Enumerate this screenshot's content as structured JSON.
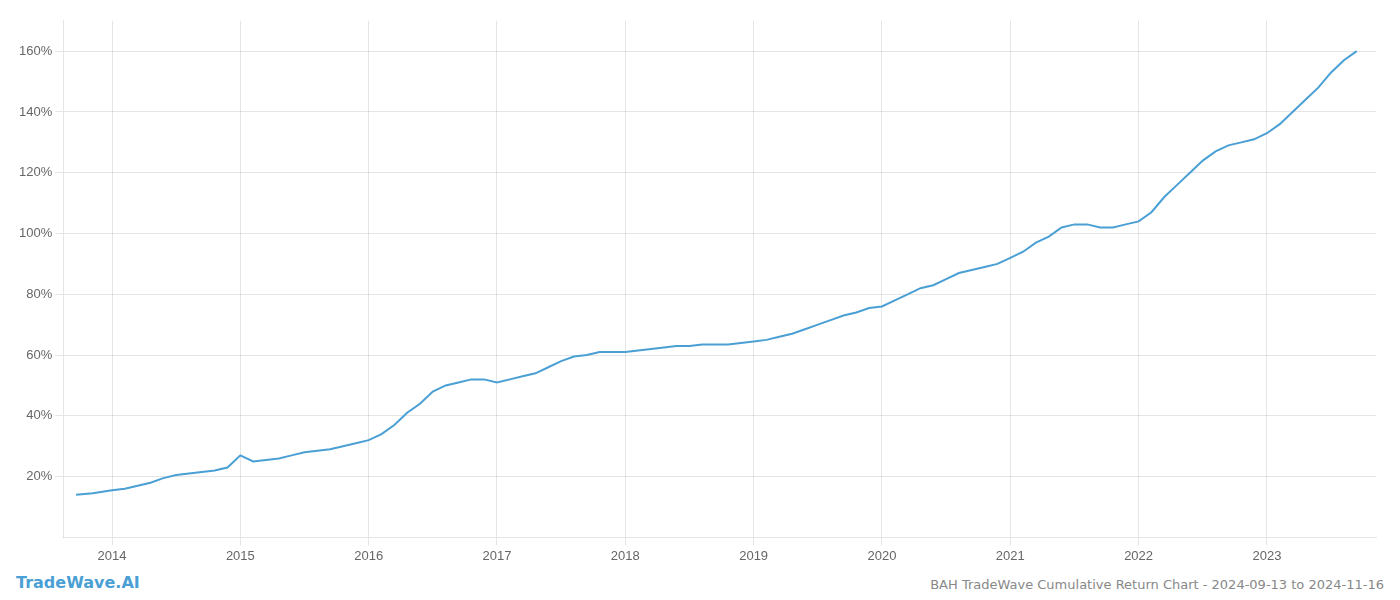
{
  "chart_data": {
    "type": "line",
    "title": "BAH TradeWave Cumulative Return Chart - 2024-09-13 to 2024-11-16",
    "annotations": [
      "TradeWave.AI"
    ],
    "color": "#4a9fd4",
    "grid": true,
    "x": [
      2013.72,
      2013.85,
      2014.0,
      2014.1,
      2014.2,
      2014.3,
      2014.4,
      2014.5,
      2014.6,
      2014.7,
      2014.8,
      2014.9,
      2015.0,
      2015.1,
      2015.2,
      2015.3,
      2015.4,
      2015.5,
      2015.6,
      2015.7,
      2015.8,
      2015.9,
      2016.0,
      2016.1,
      2016.2,
      2016.3,
      2016.4,
      2016.5,
      2016.6,
      2016.7,
      2016.8,
      2016.9,
      2017.0,
      2017.1,
      2017.2,
      2017.3,
      2017.4,
      2017.5,
      2017.6,
      2017.7,
      2017.8,
      2017.9,
      2018.0,
      2018.1,
      2018.2,
      2018.3,
      2018.4,
      2018.5,
      2018.6,
      2018.7,
      2018.8,
      2018.9,
      2019.0,
      2019.1,
      2019.2,
      2019.3,
      2019.4,
      2019.5,
      2019.6,
      2019.7,
      2019.8,
      2019.9,
      2020.0,
      2020.1,
      2020.2,
      2020.3,
      2020.4,
      2020.5,
      2020.6,
      2020.7,
      2020.8,
      2020.9,
      2021.0,
      2021.1,
      2021.2,
      2021.3,
      2021.4,
      2021.5,
      2021.6,
      2021.7,
      2021.8,
      2021.9,
      2022.0,
      2022.1,
      2022.2,
      2022.3,
      2022.4,
      2022.5,
      2022.6,
      2022.7,
      2022.8,
      2022.9,
      2023.0,
      2023.1,
      2023.2,
      2023.3,
      2023.4,
      2023.5,
      2023.6,
      2023.7
    ],
    "values": [
      14,
      14.5,
      15.5,
      16,
      17,
      18,
      19.5,
      20.5,
      21,
      21.5,
      22,
      23,
      27,
      25,
      25.5,
      26,
      27,
      28,
      28.5,
      29,
      30,
      31,
      32,
      34,
      37,
      41,
      44,
      48,
      50,
      51,
      52,
      52,
      51,
      52,
      53,
      54,
      56,
      58,
      59.5,
      60,
      61,
      61,
      61,
      61.5,
      62,
      62.5,
      63,
      63,
      63.5,
      63.5,
      63.5,
      64,
      64.5,
      65,
      66,
      67,
      68.5,
      70,
      71.5,
      73,
      74,
      75.5,
      76,
      78,
      80,
      82,
      83,
      85,
      87,
      88,
      89,
      90,
      92,
      94,
      97,
      99,
      102,
      103,
      103,
      102,
      102,
      103,
      104,
      107,
      112,
      116,
      120,
      124,
      127,
      129,
      130,
      131,
      133,
      136,
      140,
      144,
      148,
      153,
      157,
      160
    ],
    "xlim": [
      2013.62,
      2023.85
    ],
    "xticks": [
      2014,
      2015,
      2016,
      2017,
      2018,
      2019,
      2020,
      2021,
      2022,
      2023
    ],
    "ylim": [
      0,
      170
    ],
    "yticks": [
      {
        "value": 20,
        "label": "20%"
      },
      {
        "value": 40,
        "label": "40%"
      },
      {
        "value": 60,
        "label": "60%"
      },
      {
        "value": 80,
        "label": "80%"
      },
      {
        "value": 100,
        "label": "100%"
      },
      {
        "value": 120,
        "label": "120%"
      },
      {
        "value": 140,
        "label": "140%"
      },
      {
        "value": 160,
        "label": "160%"
      }
    ]
  }
}
